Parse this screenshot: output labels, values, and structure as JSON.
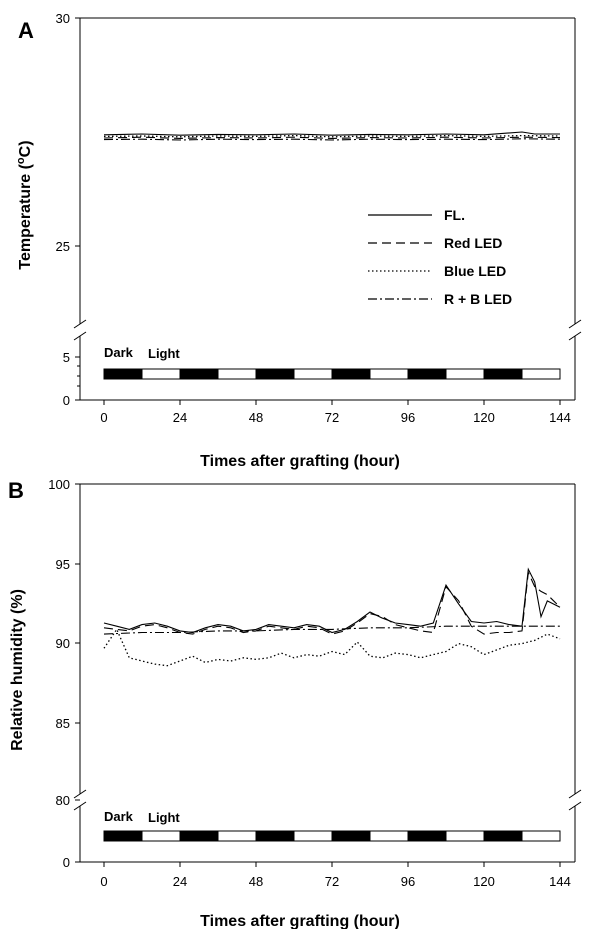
{
  "chart_data": [
    {
      "type": "line",
      "panel_label": "A",
      "xlabel": "Times after grafting (hour)",
      "ylabel_main": "Temperature (",
      "ylabel_sup": "o",
      "ylabel_end": "C)",
      "x_ticks": [
        "0",
        "24",
        "48",
        "72",
        "96",
        "120",
        "144"
      ],
      "xlim": [
        0,
        144
      ],
      "y_ticks_upper": [
        "30",
        "25"
      ],
      "y_ticks_lower": [
        "5",
        "0"
      ],
      "ylim_upper": [
        22.2,
        30
      ],
      "ylim_lower": [
        0,
        5
      ],
      "photoperiod": {
        "dark_label": "Dark",
        "light_label": "Light",
        "dark_hours": 12,
        "light_hours": 12
      },
      "legend": [
        "FL.",
        "Red LED",
        "Blue LED",
        "R + B LED"
      ],
      "series": [
        {
          "name": "FL.",
          "dash": "solid",
          "x": [
            0,
            12,
            24,
            36,
            48,
            60,
            72,
            84,
            96,
            108,
            120,
            132,
            136,
            144
          ],
          "y": [
            27.08,
            27.1,
            27.07,
            27.09,
            27.08,
            27.1,
            27.07,
            27.09,
            27.08,
            27.1,
            27.08,
            27.15,
            27.1,
            27.1
          ]
        },
        {
          "name": "Red LED",
          "dash": "dashed",
          "x": [
            0,
            12,
            24,
            36,
            48,
            60,
            72,
            84,
            96,
            108,
            120,
            132,
            144
          ],
          "y": [
            27.0,
            27.02,
            26.99,
            27.01,
            27.0,
            27.02,
            26.99,
            27.01,
            27.0,
            27.02,
            27.0,
            27.02,
            27.01
          ]
        },
        {
          "name": "Blue LED",
          "dash": "dotted",
          "x": [
            0,
            12,
            24,
            36,
            48,
            60,
            72,
            84,
            96,
            108,
            120,
            132,
            144
          ],
          "y": [
            27.04,
            27.05,
            27.03,
            27.05,
            27.04,
            27.06,
            27.03,
            27.05,
            27.04,
            27.06,
            27.04,
            27.06,
            27.05
          ]
        },
        {
          "name": "R + B LED",
          "dash": "dashdot",
          "x": [
            0,
            12,
            24,
            36,
            48,
            60,
            72,
            84,
            96,
            108,
            120,
            132,
            144
          ],
          "y": [
            26.96,
            26.97,
            26.95,
            26.97,
            26.96,
            26.97,
            26.95,
            26.97,
            26.96,
            26.97,
            26.96,
            26.98,
            26.97
          ]
        }
      ]
    },
    {
      "type": "line",
      "panel_label": "B",
      "xlabel": "Times after grafting (hour)",
      "ylabel": "Relative humidity (%)",
      "x_ticks": [
        "0",
        "24",
        "48",
        "72",
        "96",
        "120",
        "144"
      ],
      "xlim": [
        0,
        144
      ],
      "y_ticks_upper": [
        "100",
        "95",
        "90",
        "85",
        "80"
      ],
      "y_ticks_lower": [
        "0"
      ],
      "ylim_upper": [
        80,
        100
      ],
      "ylim_lower": [
        0,
        5
      ],
      "photoperiod": {
        "dark_label": "Dark",
        "light_label": "Light",
        "dark_hours": 12,
        "light_hours": 12
      },
      "series": [
        {
          "name": "FL.",
          "dash": "solid",
          "x": [
            0,
            4,
            8,
            12,
            16,
            20,
            24,
            28,
            32,
            36,
            40,
            44,
            48,
            52,
            56,
            60,
            64,
            68,
            72,
            76,
            80,
            84,
            88,
            92,
            96,
            100,
            104,
            108,
            112,
            116,
            120,
            124,
            128,
            132,
            134,
            136,
            138,
            140,
            144
          ],
          "y": [
            91.2,
            91.0,
            90.8,
            91.1,
            91.2,
            91.0,
            90.7,
            90.6,
            90.9,
            91.1,
            91.0,
            90.7,
            90.8,
            91.1,
            91.0,
            90.9,
            91.1,
            91.0,
            90.6,
            90.8,
            91.3,
            91.9,
            91.5,
            91.2,
            91.1,
            91.0,
            91.2,
            93.6,
            92.4,
            91.3,
            91.2,
            91.3,
            91.1,
            91.0,
            94.6,
            93.8,
            91.6,
            92.6,
            92.2
          ]
        },
        {
          "name": "Red LED",
          "dash": "dashed",
          "x": [
            0,
            4,
            8,
            12,
            16,
            20,
            24,
            28,
            32,
            36,
            40,
            44,
            48,
            52,
            56,
            60,
            64,
            68,
            72,
            76,
            80,
            84,
            88,
            92,
            96,
            100,
            104,
            108,
            112,
            116,
            120,
            124,
            128,
            132,
            134,
            136,
            138,
            140,
            144
          ],
          "y": [
            90.9,
            90.8,
            90.7,
            91.0,
            91.1,
            90.9,
            90.6,
            90.5,
            90.8,
            91.0,
            90.9,
            90.6,
            90.7,
            91.0,
            90.9,
            90.8,
            91.0,
            90.9,
            90.5,
            90.7,
            91.2,
            91.8,
            91.6,
            91.1,
            90.9,
            90.7,
            90.6,
            93.5,
            92.6,
            91.0,
            90.5,
            90.6,
            90.6,
            90.7,
            94.4,
            93.5,
            93.2,
            93.0,
            92.2
          ]
        },
        {
          "name": "Blue LED",
          "dash": "dotted",
          "x": [
            0,
            4,
            8,
            12,
            16,
            20,
            24,
            28,
            32,
            36,
            40,
            44,
            48,
            52,
            56,
            60,
            64,
            68,
            72,
            76,
            80,
            84,
            88,
            92,
            96,
            100,
            104,
            108,
            112,
            116,
            120,
            124,
            128,
            132,
            136,
            140,
            144
          ],
          "y": [
            89.6,
            90.8,
            89.0,
            88.8,
            88.6,
            88.5,
            88.8,
            89.1,
            88.7,
            88.9,
            88.8,
            89.0,
            88.9,
            89.0,
            89.3,
            89.0,
            89.2,
            89.1,
            89.4,
            89.2,
            90.0,
            89.1,
            89.0,
            89.3,
            89.2,
            89.0,
            89.2,
            89.4,
            89.9,
            89.7,
            89.2,
            89.5,
            89.8,
            89.9,
            90.1,
            90.5,
            90.2
          ]
        },
        {
          "name": "R + B LED",
          "dash": "dashdot",
          "x": [
            0,
            12,
            24,
            36,
            48,
            60,
            72,
            84,
            96,
            108,
            120,
            132,
            144
          ],
          "y": [
            90.5,
            90.6,
            90.6,
            90.7,
            90.7,
            90.8,
            90.8,
            90.9,
            90.9,
            91.0,
            91.0,
            91.0,
            91.0
          ]
        }
      ]
    }
  ]
}
